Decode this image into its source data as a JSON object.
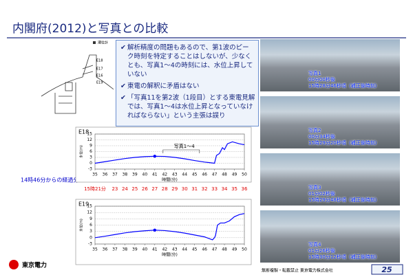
{
  "title": "内閣府(2012)と写真との比較",
  "bullets": [
    "解析精度の問題もあるので、第1波のピーク時刻を特定することはしないが、少なくとも、写真1～4の時刻には、水位上昇していない",
    "東電の解釈に矛盾はない",
    "「写真11を第2波（1段目）とする東電見解では、写真1～4は水位上昇となっていなければならない」という主張は誤り"
  ],
  "map": {
    "legend": "潮位計",
    "labels": [
      "E18",
      "E17",
      "E16",
      "E19"
    ]
  },
  "chart_data": [
    {
      "type": "line",
      "title": "E18",
      "x": [
        35,
        36,
        37,
        38,
        39,
        40,
        41,
        42,
        43,
        44,
        45,
        46,
        46.5,
        47,
        47.2,
        47.5,
        47.8,
        48,
        48.3,
        48.8,
        49.5,
        50
      ],
      "series": [
        {
          "color": "#0000ff",
          "values": [
            0,
            0.8,
            1.6,
            2.4,
            3,
            3.4,
            3.6,
            3.5,
            3,
            2.3,
            1.4,
            0.6,
            0.3,
            0,
            4,
            5,
            8,
            7,
            10,
            11,
            10,
            9.5
          ]
        }
      ],
      "marker": {
        "x": 41,
        "y": 3.6
      },
      "annotation": "写真1～4",
      "xlim": [
        35,
        50
      ],
      "xticks": [
        35,
        36,
        37,
        38,
        39,
        40,
        41,
        42,
        43,
        44,
        45,
        46,
        47,
        48,
        49,
        50
      ],
      "ylim": [
        -3,
        15
      ],
      "yticks": [
        -3,
        0,
        3,
        6,
        9,
        12,
        15
      ],
      "ylabel": "水位(m)",
      "xlabel": "時間(分)",
      "grid": true
    },
    {
      "type": "line",
      "title": "E19",
      "x": [
        35,
        36,
        37,
        38,
        39,
        40,
        41,
        42,
        43,
        44,
        45,
        46,
        46.5,
        46.8,
        47,
        47.1,
        47.3,
        47.6,
        48,
        48.5,
        49,
        49.5,
        50
      ],
      "series": [
        {
          "color": "#0000ff",
          "values": [
            0,
            0.7,
            1.5,
            2.3,
            2.9,
            3.3,
            3.6,
            3.4,
            2.9,
            2.2,
            1.3,
            0.4,
            -0.5,
            -1,
            0,
            1,
            6,
            7,
            7,
            8,
            10,
            11,
            11.5
          ]
        }
      ],
      "marker": {
        "x": 41,
        "y": 3.6
      },
      "xlim": [
        35,
        50
      ],
      "xticks": [
        35,
        36,
        37,
        38,
        39,
        40,
        41,
        42,
        43,
        44,
        45,
        46,
        47,
        48,
        49,
        50
      ],
      "ylim": [
        -3,
        15
      ],
      "yticks": [
        -3,
        0,
        3,
        6,
        9,
        12,
        15
      ],
      "ylabel": "水位(m)",
      "xlabel": "時間(分)",
      "grid": true
    }
  ],
  "time_row": {
    "label": "14時46分からの経過分",
    "times": [
      "15時21分",
      "23",
      "24",
      "25",
      "26",
      "27",
      "28",
      "29",
      "30",
      "31",
      "32",
      "33",
      "34",
      "35",
      "36"
    ]
  },
  "photos": [
    {
      "lines": [
        "写真1",
        "00分00秒後",
        "15時28分46秒頃（補正後時刻）"
      ]
    },
    {
      "lines": [
        "写真2",
        "00分34秒後",
        "15時29分20秒頃（補正後時刻）"
      ]
    },
    {
      "lines": [
        "写真3",
        "01分02秒後",
        "15時29分48秒頃（補正後時刻）"
      ]
    },
    {
      "lines": [
        "写真4",
        "01分26秒後",
        "15時30分12秒頃（補正後時刻）"
      ]
    }
  ],
  "footer": {
    "company": "東京電力",
    "notice": "無断複製・転載禁止 東京電力株式会社",
    "page": "25"
  }
}
